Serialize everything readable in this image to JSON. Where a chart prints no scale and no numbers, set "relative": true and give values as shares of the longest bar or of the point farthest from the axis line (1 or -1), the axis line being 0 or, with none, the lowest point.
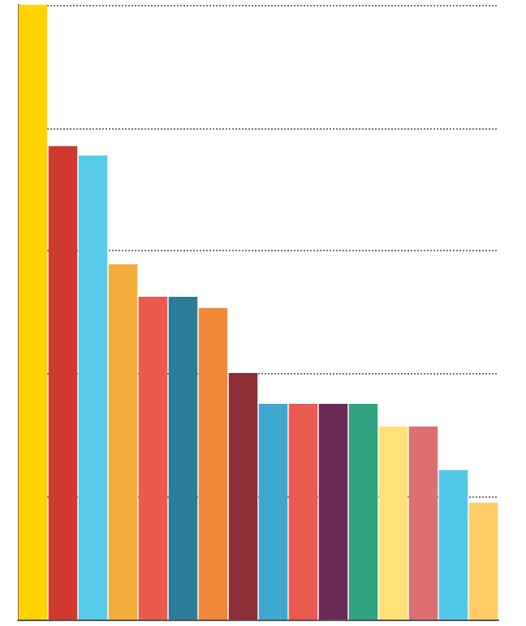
{
  "chart_data": {
    "type": "bar",
    "relative": true,
    "grid": "y",
    "categories": [
      null,
      null,
      null,
      null,
      null,
      null,
      null,
      null,
      null,
      null,
      null,
      null,
      null,
      null,
      null,
      null
    ],
    "values": [
      1,
      0.77,
      0.755,
      0.578,
      0.525,
      0.525,
      0.507,
      0.401,
      0.351,
      0.351,
      0.351,
      0.351,
      0.314,
      0.314,
      0.243,
      0.19
    ],
    "colors": [
      "#ffd200",
      "#d0392e",
      "#56cbea",
      "#f2ad3a",
      "#ea5a4c",
      "#2c7b99",
      "#f0883a",
      "#8b2e35",
      "#3fa8d0",
      "#e85b4e",
      "#6a2a55",
      "#2fa27f",
      "#ffe277",
      "#dc7070",
      "#52c8ea",
      "#ffcc66"
    ]
  }
}
